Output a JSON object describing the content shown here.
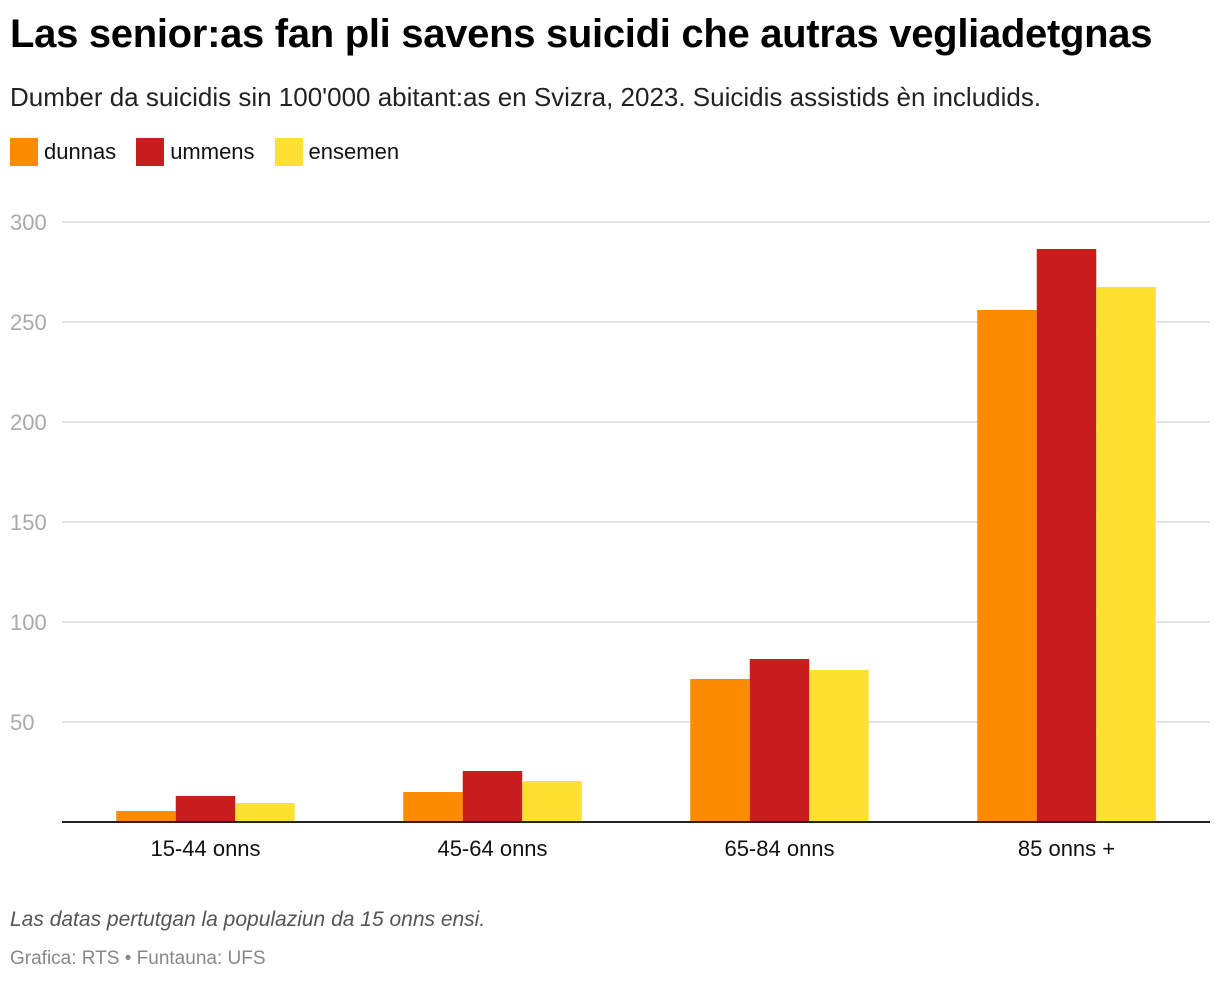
{
  "chart_data": {
    "type": "bar",
    "title": "Las senior:as fan pli savens suicidi che autras vegliadetgnas",
    "subtitle": "Dumber da suicidis sin 100'000 abitant:as en Svizra, 2023. Suicidis assistids èn includids.",
    "categories": [
      "15-44 onns",
      "45-64 onns",
      "65-84 onns",
      "85 onns +"
    ],
    "series": [
      {
        "name": "dunnas",
        "color": "#fb8c00",
        "values": [
          5.5,
          15,
          71.5,
          256
        ]
      },
      {
        "name": "ummens",
        "color": "#c71e1d",
        "values": [
          13,
          25.5,
          81.5,
          286.5
        ]
      },
      {
        "name": "ensemen",
        "color": "#ffe132",
        "values": [
          9.5,
          20.5,
          76,
          267.5
        ]
      }
    ],
    "ylim": [
      0,
      300
    ],
    "yticks": [
      50,
      100,
      150,
      200,
      250,
      300
    ],
    "grid": true,
    "legend_position": "top-left",
    "xlabel": "",
    "ylabel": ""
  },
  "footer": {
    "note": "Las datas pertutgan la populaziun da 15 onns ensi.",
    "source": "Grafica: RTS • Funtauna: UFS"
  }
}
